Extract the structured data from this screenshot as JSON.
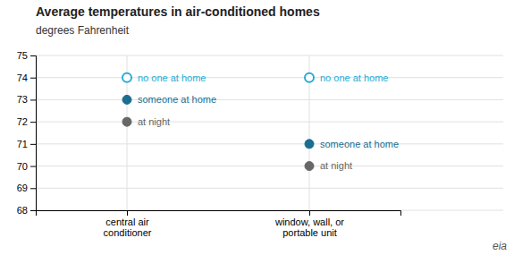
{
  "chart_data": {
    "type": "scatter",
    "title": "Average temperatures in air-conditioned homes",
    "subtitle": "degrees Fahrenheit",
    "categories": [
      "central air\nconditioner",
      "window, wall, or\nportable unit"
    ],
    "series": [
      {
        "name": "no one at home",
        "color": "#29ABD4",
        "marker": "open_circle",
        "values": [
          74,
          74
        ]
      },
      {
        "name": "someone at home",
        "color": "#1B6E8F",
        "marker": "circle",
        "values": [
          73,
          71
        ]
      },
      {
        "name": "at night",
        "color": "#676767",
        "marker": "circle",
        "values": [
          72,
          70
        ]
      }
    ],
    "ylim": [
      68,
      75
    ],
    "yticks": [
      68,
      69,
      70,
      71,
      72,
      73,
      74,
      75
    ],
    "grid": true,
    "annotations": [
      "eia"
    ]
  }
}
